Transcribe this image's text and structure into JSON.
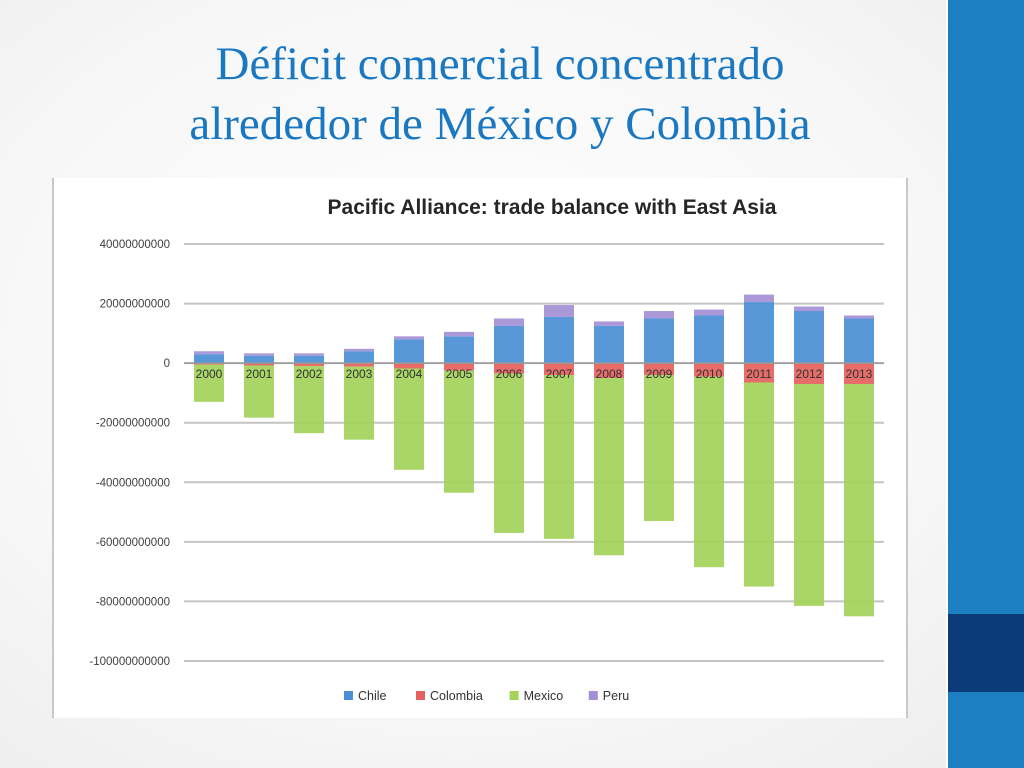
{
  "slide": {
    "title_line1": "Déficit comercial concentrado",
    "title_line2": "alrededor de México y Colombia"
  },
  "colors": {
    "title": "#1a78c2",
    "side_bar": "#1b7fc2",
    "side_bar_accent": "#0b3b78"
  },
  "chart_data": {
    "type": "bar",
    "stacked": true,
    "title": "Pacific Alliance: trade balance with East Asia",
    "xlabel": "",
    "ylabel": "",
    "ylim": [
      -100000000000,
      40000000000
    ],
    "yticks": [
      40000000000,
      20000000000,
      0,
      -20000000000,
      -40000000000,
      -60000000000,
      -80000000000,
      -100000000000
    ],
    "ytick_labels": [
      "40000000000",
      "20000000000",
      "0",
      "-20000000000",
      "-40000000000",
      "-60000000000",
      "-80000000000",
      "-100000000000"
    ],
    "grid": true,
    "legend_position": "bottom",
    "categories": [
      "2000",
      "2001",
      "2002",
      "2003",
      "2004",
      "2005",
      "2006",
      "2007",
      "2008",
      "2009",
      "2010",
      "2011",
      "2012",
      "2013"
    ],
    "series": [
      {
        "name": "Chile",
        "color": "#4a8fd6",
        "values": [
          3000000000,
          2500000000,
          2500000000,
          4000000000,
          8000000000,
          9000000000,
          12500000000,
          15500000000,
          12500000000,
          15000000000,
          16000000000,
          20500000000,
          17500000000,
          15000000000
        ]
      },
      {
        "name": "Colombia",
        "color": "#e5615e",
        "values": [
          -500000000,
          -800000000,
          -1000000000,
          -1200000000,
          -1800000000,
          -2500000000,
          -3500000000,
          -4000000000,
          -5000000000,
          -4000000000,
          -4500000000,
          -6500000000,
          -7000000000,
          -7000000000
        ]
      },
      {
        "name": "Mexico",
        "color": "#a3d35a",
        "values": [
          -12500000000,
          -17500000000,
          -22500000000,
          -24500000000,
          -34000000000,
          -41000000000,
          -53500000000,
          -55000000000,
          -59500000000,
          -49000000000,
          -64000000000,
          -68500000000,
          -74500000000,
          -78000000000
        ]
      },
      {
        "name": "Peru",
        "color": "#a48fd6",
        "values": [
          1000000000,
          800000000,
          800000000,
          800000000,
          1000000000,
          1500000000,
          2500000000,
          4000000000,
          1500000000,
          2500000000,
          2000000000,
          2500000000,
          1500000000,
          1000000000
        ]
      }
    ]
  }
}
